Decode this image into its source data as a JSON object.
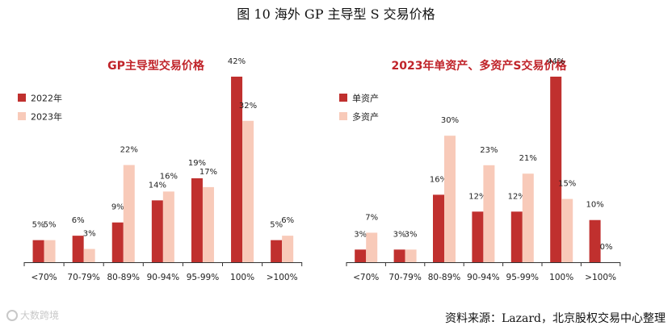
{
  "figure_title": "图 10  海外 GP 主导型 S 交易价格",
  "source_note": "资料来源：Lazard，北京股权交易中心整理",
  "watermark": "大数跨境",
  "colors": {
    "dark": "#c0302e",
    "light": "#f8cab9",
    "title": "#c0242a"
  },
  "chart_data": [
    {
      "type": "bar",
      "title": "GP主导型交易价格",
      "categories": [
        "<70%",
        "70-79%",
        "80-89%",
        "90-94%",
        "95-99%",
        "100%",
        ">100%"
      ],
      "series": [
        {
          "name": "2022年",
          "values": [
            5,
            6,
            9,
            14,
            19,
            42,
            5
          ],
          "labels": [
            "5%",
            "6%",
            "9%",
            "14%",
            "19%",
            "42%",
            "5%"
          ]
        },
        {
          "name": "2023年",
          "values": [
            5,
            3,
            22,
            16,
            17,
            32,
            6
          ],
          "labels": [
            "5%",
            "3%",
            "22%",
            "16%",
            "17%",
            "32%",
            "6%"
          ]
        }
      ],
      "ylim": [
        0,
        42
      ],
      "xlabel": "",
      "ylabel": ""
    },
    {
      "type": "bar",
      "title": "2023年单资产、多资产S交易价格",
      "categories": [
        "<70%",
        "70-79%",
        "80-89%",
        "90-94%",
        "95-99%",
        "100%",
        ">100%"
      ],
      "series": [
        {
          "name": "单资产",
          "values": [
            3,
            3,
            16,
            12,
            12,
            44,
            10
          ],
          "labels": [
            "3%",
            "3%",
            "16%",
            "12%",
            "12%",
            "44%",
            "10%"
          ]
        },
        {
          "name": "多资产",
          "values": [
            7,
            3,
            30,
            23,
            21,
            15,
            0
          ],
          "labels": [
            "7%",
            "3%",
            "30%",
            "23%",
            "21%",
            "15%",
            "0%"
          ]
        }
      ],
      "ylim": [
        0,
        44
      ],
      "xlabel": "",
      "ylabel": ""
    }
  ]
}
